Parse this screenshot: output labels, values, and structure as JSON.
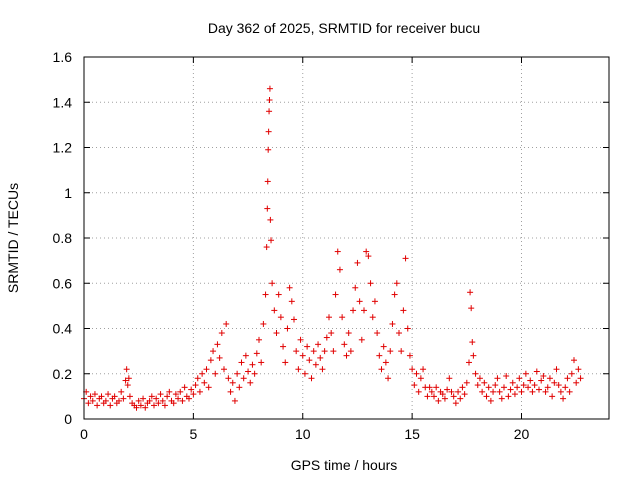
{
  "chart_data": {
    "type": "scatter",
    "title": "Day 362 of 2025, SRMTID for receiver bucu",
    "xlabel": "GPS time / hours",
    "ylabel": "SRMTID / TECUs",
    "xlim": [
      0,
      24
    ],
    "ylim": [
      0,
      1.6
    ],
    "xticks": [
      0,
      5,
      10,
      15,
      20
    ],
    "xtick_labels": [
      "0",
      "5",
      "10",
      "15",
      "20"
    ],
    "yticks": [
      0,
      0.2,
      0.4,
      0.6,
      0.8,
      1,
      1.2,
      1.4,
      1.6
    ],
    "ytick_labels": [
      "0",
      "0.2",
      "0.4",
      "0.6",
      "0.8",
      "1",
      "1.2",
      "1.4",
      "1.6"
    ],
    "grid": true,
    "marker": "plus",
    "color": "#e00000",
    "series": [
      {
        "name": "SRMTID",
        "points": [
          [
            0.0,
            0.09
          ],
          [
            0.1,
            0.12
          ],
          [
            0.2,
            0.07
          ],
          [
            0.3,
            0.1
          ],
          [
            0.4,
            0.08
          ],
          [
            0.5,
            0.11
          ],
          [
            0.6,
            0.06
          ],
          [
            0.7,
            0.09
          ],
          [
            0.8,
            0.1
          ],
          [
            0.9,
            0.07
          ],
          [
            1.0,
            0.08
          ],
          [
            1.1,
            0.11
          ],
          [
            1.2,
            0.06
          ],
          [
            1.3,
            0.09
          ],
          [
            1.4,
            0.1
          ],
          [
            1.5,
            0.07
          ],
          [
            1.6,
            0.08
          ],
          [
            1.7,
            0.12
          ],
          [
            1.8,
            0.09
          ],
          [
            1.9,
            0.17
          ],
          [
            1.95,
            0.22
          ],
          [
            2.0,
            0.15
          ],
          [
            2.05,
            0.18
          ],
          [
            2.1,
            0.1
          ],
          [
            2.2,
            0.07
          ],
          [
            2.3,
            0.06
          ],
          [
            2.4,
            0.05
          ],
          [
            2.5,
            0.08
          ],
          [
            2.6,
            0.06
          ],
          [
            2.7,
            0.09
          ],
          [
            2.8,
            0.05
          ],
          [
            2.9,
            0.07
          ],
          [
            3.0,
            0.08
          ],
          [
            3.1,
            0.1
          ],
          [
            3.2,
            0.06
          ],
          [
            3.3,
            0.09
          ],
          [
            3.4,
            0.07
          ],
          [
            3.5,
            0.11
          ],
          [
            3.6,
            0.08
          ],
          [
            3.7,
            0.06
          ],
          [
            3.8,
            0.1
          ],
          [
            3.9,
            0.12
          ],
          [
            4.0,
            0.08
          ],
          [
            4.1,
            0.07
          ],
          [
            4.2,
            0.11
          ],
          [
            4.3,
            0.09
          ],
          [
            4.4,
            0.12
          ],
          [
            4.5,
            0.08
          ],
          [
            4.6,
            0.14
          ],
          [
            4.7,
            0.1
          ],
          [
            4.8,
            0.09
          ],
          [
            4.9,
            0.13
          ],
          [
            5.0,
            0.11
          ],
          [
            5.1,
            0.15
          ],
          [
            5.2,
            0.18
          ],
          [
            5.3,
            0.12
          ],
          [
            5.4,
            0.2
          ],
          [
            5.5,
            0.16
          ],
          [
            5.6,
            0.22
          ],
          [
            5.7,
            0.14
          ],
          [
            5.8,
            0.26
          ],
          [
            5.9,
            0.3
          ],
          [
            6.0,
            0.2
          ],
          [
            6.1,
            0.33
          ],
          [
            6.2,
            0.27
          ],
          [
            6.3,
            0.38
          ],
          [
            6.4,
            0.22
          ],
          [
            6.5,
            0.42
          ],
          [
            6.6,
            0.18
          ],
          [
            6.7,
            0.12
          ],
          [
            6.8,
            0.16
          ],
          [
            6.9,
            0.08
          ],
          [
            7.0,
            0.2
          ],
          [
            7.1,
            0.14
          ],
          [
            7.2,
            0.25
          ],
          [
            7.3,
            0.18
          ],
          [
            7.4,
            0.28
          ],
          [
            7.5,
            0.21
          ],
          [
            7.6,
            0.16
          ],
          [
            7.7,
            0.24
          ],
          [
            7.8,
            0.2
          ],
          [
            7.9,
            0.29
          ],
          [
            8.0,
            0.35
          ],
          [
            8.1,
            0.25
          ],
          [
            8.2,
            0.42
          ],
          [
            8.3,
            0.55
          ],
          [
            8.35,
            0.76
          ],
          [
            8.38,
            0.93
          ],
          [
            8.4,
            1.05
          ],
          [
            8.42,
            1.19
          ],
          [
            8.44,
            1.27
          ],
          [
            8.46,
            1.36
          ],
          [
            8.48,
            1.41
          ],
          [
            8.5,
            1.46
          ],
          [
            8.52,
            0.88
          ],
          [
            8.55,
            0.79
          ],
          [
            8.6,
            0.6
          ],
          [
            8.7,
            0.48
          ],
          [
            8.8,
            0.38
          ],
          [
            8.9,
            0.55
          ],
          [
            9.0,
            0.45
          ],
          [
            9.1,
            0.32
          ],
          [
            9.2,
            0.25
          ],
          [
            9.3,
            0.4
          ],
          [
            9.4,
            0.58
          ],
          [
            9.5,
            0.52
          ],
          [
            9.6,
            0.44
          ],
          [
            9.7,
            0.3
          ],
          [
            9.8,
            0.22
          ],
          [
            9.9,
            0.35
          ],
          [
            10.0,
            0.28
          ],
          [
            10.1,
            0.2
          ],
          [
            10.2,
            0.32
          ],
          [
            10.3,
            0.26
          ],
          [
            10.4,
            0.18
          ],
          [
            10.5,
            0.3
          ],
          [
            10.6,
            0.24
          ],
          [
            10.7,
            0.33
          ],
          [
            10.8,
            0.27
          ],
          [
            10.9,
            0.22
          ],
          [
            11.0,
            0.3
          ],
          [
            11.1,
            0.36
          ],
          [
            11.2,
            0.45
          ],
          [
            11.3,
            0.38
          ],
          [
            11.4,
            0.3
          ],
          [
            11.5,
            0.55
          ],
          [
            11.6,
            0.74
          ],
          [
            11.7,
            0.66
          ],
          [
            11.8,
            0.45
          ],
          [
            11.9,
            0.33
          ],
          [
            12.0,
            0.28
          ],
          [
            12.1,
            0.38
          ],
          [
            12.2,
            0.3
          ],
          [
            12.3,
            0.48
          ],
          [
            12.4,
            0.58
          ],
          [
            12.5,
            0.69
          ],
          [
            12.6,
            0.52
          ],
          [
            12.7,
            0.35
          ],
          [
            12.8,
            0.48
          ],
          [
            12.9,
            0.74
          ],
          [
            13.0,
            0.72
          ],
          [
            13.1,
            0.6
          ],
          [
            13.2,
            0.45
          ],
          [
            13.3,
            0.52
          ],
          [
            13.4,
            0.38
          ],
          [
            13.5,
            0.28
          ],
          [
            13.6,
            0.22
          ],
          [
            13.7,
            0.32
          ],
          [
            13.8,
            0.25
          ],
          [
            13.9,
            0.18
          ],
          [
            14.0,
            0.3
          ],
          [
            14.1,
            0.42
          ],
          [
            14.2,
            0.55
          ],
          [
            14.3,
            0.6
          ],
          [
            14.4,
            0.38
          ],
          [
            14.5,
            0.3
          ],
          [
            14.6,
            0.48
          ],
          [
            14.7,
            0.71
          ],
          [
            14.8,
            0.4
          ],
          [
            14.9,
            0.28
          ],
          [
            15.0,
            0.22
          ],
          [
            15.1,
            0.15
          ],
          [
            15.2,
            0.2
          ],
          [
            15.3,
            0.12
          ],
          [
            15.4,
            0.18
          ],
          [
            15.5,
            0.22
          ],
          [
            15.6,
            0.14
          ],
          [
            15.7,
            0.1
          ],
          [
            15.8,
            0.14
          ],
          [
            15.9,
            0.12
          ],
          [
            16.0,
            0.1
          ],
          [
            16.1,
            0.14
          ],
          [
            16.2,
            0.08
          ],
          [
            16.3,
            0.12
          ],
          [
            16.4,
            0.11
          ],
          [
            16.5,
            0.09
          ],
          [
            16.6,
            0.13
          ],
          [
            16.7,
            0.18
          ],
          [
            16.8,
            0.12
          ],
          [
            16.9,
            0.1
          ],
          [
            17.0,
            0.07
          ],
          [
            17.1,
            0.12
          ],
          [
            17.2,
            0.09
          ],
          [
            17.3,
            0.14
          ],
          [
            17.4,
            0.11
          ],
          [
            17.5,
            0.16
          ],
          [
            17.6,
            0.25
          ],
          [
            17.65,
            0.56
          ],
          [
            17.7,
            0.49
          ],
          [
            17.75,
            0.34
          ],
          [
            17.8,
            0.28
          ],
          [
            17.9,
            0.2
          ],
          [
            18.0,
            0.15
          ],
          [
            18.1,
            0.18
          ],
          [
            18.2,
            0.12
          ],
          [
            18.3,
            0.16
          ],
          [
            18.4,
            0.1
          ],
          [
            18.5,
            0.14
          ],
          [
            18.6,
            0.08
          ],
          [
            18.7,
            0.12
          ],
          [
            18.8,
            0.15
          ],
          [
            18.9,
            0.18
          ],
          [
            19.0,
            0.12
          ],
          [
            19.1,
            0.09
          ],
          [
            19.2,
            0.14
          ],
          [
            19.3,
            0.19
          ],
          [
            19.4,
            0.1
          ],
          [
            19.5,
            0.13
          ],
          [
            19.6,
            0.16
          ],
          [
            19.7,
            0.11
          ],
          [
            19.8,
            0.14
          ],
          [
            19.9,
            0.18
          ],
          [
            20.0,
            0.12
          ],
          [
            20.1,
            0.15
          ],
          [
            20.2,
            0.2
          ],
          [
            20.3,
            0.14
          ],
          [
            20.4,
            0.17
          ],
          [
            20.5,
            0.12
          ],
          [
            20.6,
            0.15
          ],
          [
            20.7,
            0.21
          ],
          [
            20.8,
            0.13
          ],
          [
            20.9,
            0.17
          ],
          [
            21.0,
            0.19
          ],
          [
            21.1,
            0.12
          ],
          [
            21.2,
            0.14
          ],
          [
            21.3,
            0.18
          ],
          [
            21.4,
            0.1
          ],
          [
            21.5,
            0.16
          ],
          [
            21.6,
            0.22
          ],
          [
            21.7,
            0.15
          ],
          [
            21.8,
            0.12
          ],
          [
            21.9,
            0.09
          ],
          [
            22.0,
            0.14
          ],
          [
            22.1,
            0.18
          ],
          [
            22.2,
            0.12
          ],
          [
            22.3,
            0.2
          ],
          [
            22.4,
            0.26
          ],
          [
            22.5,
            0.16
          ],
          [
            22.6,
            0.22
          ],
          [
            22.7,
            0.18
          ]
        ]
      }
    ]
  }
}
